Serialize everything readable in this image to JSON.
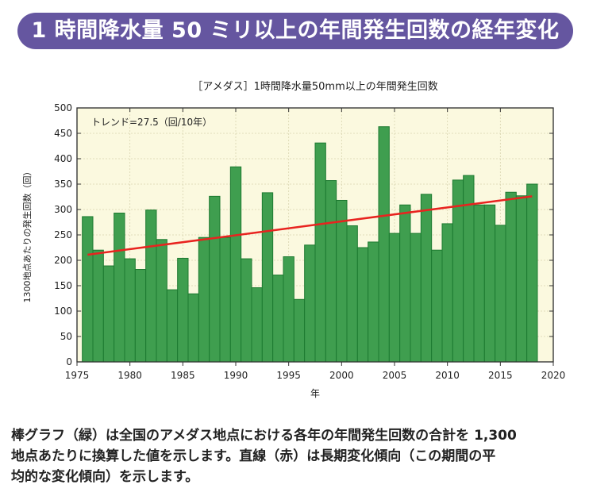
{
  "header": {
    "title": "1 時間降水量 50 ミリ以上の年間発生回数の経年変化"
  },
  "caption": {
    "lines": [
      "棒グラフ（緑）は全国のアメダス地点における各年の年間発生回数の合計を 1,300",
      "地点あたりに換算した値を示します。直線（赤）は長期変化傾向（この期間の平",
      "均的な変化傾向）を示します。"
    ]
  },
  "chart_data": {
    "type": "bar",
    "title": "［アメダス］1時間降水量50mm以上の年間発生回数",
    "xlabel": "年",
    "ylabel": "1300地点あたりの発生回数（回）",
    "annotation": "トレンド=27.5（回/10年）",
    "xlim": [
      1975,
      2020
    ],
    "ylim": [
      0,
      500
    ],
    "xticks": [
      1975,
      1980,
      1985,
      1990,
      1995,
      2000,
      2005,
      2010,
      2015,
      2020
    ],
    "yticks": [
      0,
      50,
      100,
      150,
      200,
      250,
      300,
      350,
      400,
      450,
      500
    ],
    "grid": true,
    "x": [
      1976,
      1977,
      1978,
      1979,
      1980,
      1981,
      1982,
      1983,
      1984,
      1985,
      1986,
      1987,
      1988,
      1989,
      1990,
      1991,
      1992,
      1993,
      1994,
      1995,
      1996,
      1997,
      1998,
      1999,
      2000,
      2001,
      2002,
      2003,
      2004,
      2005,
      2006,
      2007,
      2008,
      2009,
      2010,
      2011,
      2012,
      2013,
      2014,
      2015,
      2016,
      2017,
      2018
    ],
    "values": [
      286,
      220,
      189,
      293,
      203,
      182,
      299,
      241,
      142,
      204,
      134,
      245,
      326,
      245,
      384,
      203,
      146,
      333,
      171,
      207,
      123,
      230,
      431,
      357,
      318,
      268,
      225,
      236,
      463,
      253,
      309,
      253,
      330,
      220,
      272,
      358,
      367,
      309,
      309,
      269,
      334,
      327,
      350
    ],
    "trend_line": {
      "x": [
        1976,
        2018
      ],
      "y": [
        211,
        326
      ]
    },
    "colors": {
      "bar": "#3f9e4f",
      "bar_edge": "#1d7a30",
      "trend": "#e8231f",
      "plot_bg": "#fbf9df"
    }
  }
}
